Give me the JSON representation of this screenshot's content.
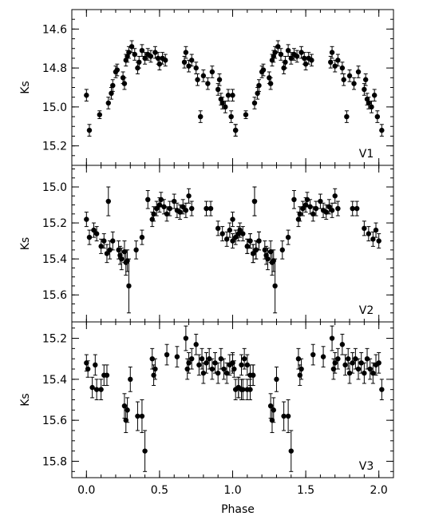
{
  "chart_data": [
    {
      "type": "scatter",
      "panel_label": "V1",
      "ylabel": "Ks",
      "ylim": [
        15.3,
        14.5
      ],
      "y_inverted": true,
      "yticks": [
        14.6,
        14.8,
        15.0,
        15.2
      ],
      "ytick_labels": [
        "14.6",
        "14.8",
        "15.0",
        "15.2"
      ],
      "points": [
        [
          0.0,
          14.94,
          0.03
        ],
        [
          0.02,
          15.12,
          0.03
        ],
        [
          0.09,
          15.04,
          0.02
        ],
        [
          0.15,
          14.98,
          0.03
        ],
        [
          0.17,
          14.93,
          0.03
        ],
        [
          0.18,
          14.89,
          0.03
        ],
        [
          0.2,
          14.82,
          0.03
        ],
        [
          0.21,
          14.81,
          0.03
        ],
        [
          0.25,
          14.85,
          0.03
        ],
        [
          0.26,
          14.88,
          0.03
        ],
        [
          0.27,
          14.76,
          0.03
        ],
        [
          0.28,
          14.74,
          0.03
        ],
        [
          0.29,
          14.72,
          0.03
        ],
        [
          0.31,
          14.69,
          0.03
        ],
        [
          0.33,
          14.73,
          0.03
        ],
        [
          0.35,
          14.8,
          0.03
        ],
        [
          0.36,
          14.77,
          0.03
        ],
        [
          0.38,
          14.71,
          0.03
        ],
        [
          0.4,
          14.75,
          0.03
        ],
        [
          0.42,
          14.73,
          0.03
        ],
        [
          0.44,
          14.74,
          0.03
        ],
        [
          0.47,
          14.72,
          0.03
        ],
        [
          0.49,
          14.75,
          0.03
        ],
        [
          0.5,
          14.78,
          0.03
        ],
        [
          0.52,
          14.75,
          0.03
        ],
        [
          0.54,
          14.76,
          0.03
        ],
        [
          0.67,
          14.77,
          0.03
        ],
        [
          0.68,
          14.72,
          0.03
        ],
        [
          0.7,
          14.79,
          0.03
        ],
        [
          0.72,
          14.76,
          0.03
        ],
        [
          0.75,
          14.8,
          0.03
        ],
        [
          0.76,
          14.86,
          0.03
        ],
        [
          0.78,
          15.05,
          0.03
        ],
        [
          0.8,
          14.84,
          0.03
        ],
        [
          0.83,
          14.88,
          0.03
        ],
        [
          0.86,
          14.82,
          0.03
        ],
        [
          0.9,
          14.91,
          0.03
        ],
        [
          0.91,
          14.86,
          0.03
        ],
        [
          0.92,
          14.96,
          0.03
        ],
        [
          0.93,
          14.98,
          0.03
        ],
        [
          0.95,
          15.0,
          0.03
        ],
        [
          0.97,
          14.94,
          0.03
        ],
        [
          0.99,
          15.05,
          0.03
        ],
        [
          1.02,
          15.12,
          0.03
        ]
      ]
    },
    {
      "type": "scatter",
      "panel_label": "V2",
      "ylabel": "Ks",
      "ylim": [
        15.75,
        14.88
      ],
      "y_inverted": true,
      "yticks": [
        15.0,
        15.2,
        15.4,
        15.6
      ],
      "ytick_labels": [
        "15.0",
        "15.2",
        "15.4",
        "15.6"
      ],
      "points": [
        [
          0.0,
          15.18,
          0.04
        ],
        [
          0.02,
          15.28,
          0.04
        ],
        [
          0.05,
          15.24,
          0.04
        ],
        [
          0.07,
          15.26,
          0.04
        ],
        [
          0.1,
          15.33,
          0.04
        ],
        [
          0.12,
          15.3,
          0.04
        ],
        [
          0.14,
          15.37,
          0.05
        ],
        [
          0.15,
          15.08,
          0.08
        ],
        [
          0.16,
          15.35,
          0.05
        ],
        [
          0.18,
          15.3,
          0.05
        ],
        [
          0.22,
          15.35,
          0.05
        ],
        [
          0.23,
          15.38,
          0.05
        ],
        [
          0.24,
          15.4,
          0.06
        ],
        [
          0.26,
          15.36,
          0.06
        ],
        [
          0.27,
          15.42,
          0.07
        ],
        [
          0.28,
          15.41,
          0.06
        ],
        [
          0.29,
          15.55,
          0.15
        ],
        [
          0.34,
          15.35,
          0.05
        ],
        [
          0.38,
          15.28,
          0.04
        ],
        [
          0.42,
          15.07,
          0.05
        ],
        [
          0.45,
          15.18,
          0.04
        ],
        [
          0.46,
          15.15,
          0.04
        ],
        [
          0.48,
          15.12,
          0.04
        ],
        [
          0.5,
          15.1,
          0.04
        ],
        [
          0.51,
          15.07,
          0.04
        ],
        [
          0.53,
          15.11,
          0.04
        ],
        [
          0.55,
          15.15,
          0.04
        ],
        [
          0.57,
          15.12,
          0.04
        ],
        [
          0.6,
          15.08,
          0.04
        ],
        [
          0.62,
          15.13,
          0.04
        ],
        [
          0.64,
          15.14,
          0.04
        ],
        [
          0.66,
          15.11,
          0.04
        ],
        [
          0.68,
          15.13,
          0.04
        ],
        [
          0.7,
          15.05,
          0.04
        ],
        [
          0.72,
          15.12,
          0.04
        ],
        [
          0.82,
          15.12,
          0.04
        ],
        [
          0.85,
          15.12,
          0.04
        ],
        [
          0.9,
          15.23,
          0.04
        ],
        [
          0.93,
          15.26,
          0.04
        ],
        [
          0.96,
          15.29,
          0.04
        ],
        [
          0.98,
          15.24,
          0.04
        ],
        [
          1.0,
          15.3,
          0.04
        ],
        [
          1.04,
          15.26,
          0.04
        ],
        [
          1.1,
          15.33,
          0.04
        ],
        [
          1.12,
          15.3,
          0.04
        ],
        [
          1.14,
          15.37,
          0.05
        ],
        [
          1.15,
          15.08,
          0.08
        ],
        [
          1.16,
          15.35,
          0.05
        ],
        [
          1.18,
          15.3,
          0.05
        ]
      ]
    },
    {
      "type": "scatter",
      "panel_label": "V3",
      "ylabel": "Ks",
      "ylim": [
        15.88,
        15.12
      ],
      "y_inverted": true,
      "yticks": [
        15.2,
        15.4,
        15.6,
        15.8
      ],
      "ytick_labels": [
        "15.2",
        "15.4",
        "15.6",
        "15.8"
      ],
      "points": [
        [
          0.0,
          15.32,
          0.04
        ],
        [
          0.01,
          15.35,
          0.04
        ],
        [
          0.04,
          15.44,
          0.05
        ],
        [
          0.06,
          15.33,
          0.05
        ],
        [
          0.07,
          15.45,
          0.05
        ],
        [
          0.1,
          15.45,
          0.05
        ],
        [
          0.12,
          15.38,
          0.05
        ],
        [
          0.14,
          15.38,
          0.05
        ],
        [
          0.26,
          15.53,
          0.06
        ],
        [
          0.27,
          15.6,
          0.06
        ],
        [
          0.28,
          15.55,
          0.06
        ],
        [
          0.3,
          15.4,
          0.06
        ],
        [
          0.35,
          15.58,
          0.07
        ],
        [
          0.38,
          15.58,
          0.08
        ],
        [
          0.4,
          15.75,
          0.1
        ],
        [
          0.45,
          15.3,
          0.05
        ],
        [
          0.46,
          15.38,
          0.05
        ],
        [
          0.47,
          15.35,
          0.05
        ],
        [
          0.55,
          15.28,
          0.05
        ],
        [
          0.62,
          15.29,
          0.05
        ],
        [
          0.68,
          15.2,
          0.06
        ],
        [
          0.69,
          15.35,
          0.05
        ],
        [
          0.7,
          15.32,
          0.05
        ],
        [
          0.72,
          15.3,
          0.05
        ],
        [
          0.75,
          15.23,
          0.05
        ],
        [
          0.77,
          15.33,
          0.05
        ],
        [
          0.79,
          15.3,
          0.05
        ],
        [
          0.8,
          15.37,
          0.05
        ],
        [
          0.82,
          15.32,
          0.05
        ],
        [
          0.84,
          15.3,
          0.05
        ],
        [
          0.86,
          15.35,
          0.05
        ],
        [
          0.88,
          15.32,
          0.05
        ],
        [
          0.9,
          15.37,
          0.05
        ],
        [
          0.92,
          15.3,
          0.05
        ],
        [
          0.94,
          15.35,
          0.05
        ],
        [
          0.96,
          15.37,
          0.05
        ],
        [
          0.98,
          15.33,
          0.05
        ],
        [
          1.0,
          15.32,
          0.05
        ],
        [
          1.02,
          15.45,
          0.05
        ],
        [
          1.04,
          15.44,
          0.05
        ],
        [
          1.06,
          15.45,
          0.05
        ],
        [
          1.08,
          15.3,
          0.05
        ],
        [
          1.1,
          15.33,
          0.05
        ],
        [
          1.12,
          15.45,
          0.05
        ],
        [
          1.14,
          15.38,
          0.05
        ]
      ]
    }
  ],
  "xaxis": {
    "label": "Phase",
    "xlim": [
      -0.1,
      2.1
    ],
    "ticks": [
      0.0,
      0.5,
      1.0,
      1.5,
      2.0
    ],
    "tick_labels": [
      "0.0",
      "0.5",
      "1.0",
      "1.5",
      "2.0"
    ]
  }
}
